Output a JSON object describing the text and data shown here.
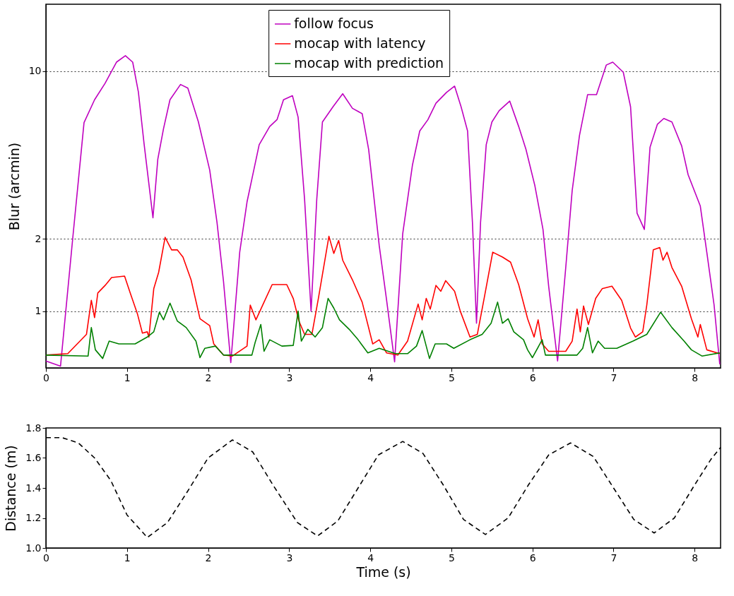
{
  "chart_data": [
    {
      "type": "line",
      "ylabel": "Blur (arcmin)",
      "log": true,
      "grid": "y",
      "legend": "top",
      "xlim": [
        0,
        8.32
      ],
      "xticks": [
        0,
        1,
        2,
        3,
        4,
        5,
        6,
        7,
        8
      ],
      "ylim": [
        0.58,
        19
      ],
      "yticks": [
        1,
        2,
        10
      ],
      "line_style": "solid",
      "series": [
        {
          "name": "follow focus",
          "color": "#bf00bf",
          "x": [
            0,
            0.18,
            0.33,
            0.47,
            0.6,
            0.73,
            0.87,
            0.98,
            1.07,
            1.14,
            1.21,
            1.32,
            1.38,
            1.45,
            1.53,
            1.66,
            1.75,
            1.88,
            2.02,
            2.11,
            2.19,
            2.28,
            2.39,
            2.48,
            2.63,
            2.76,
            2.85,
            2.93,
            3.04,
            3.11,
            3.19,
            3.27,
            3.34,
            3.41,
            3.54,
            3.66,
            3.78,
            3.9,
            3.98,
            4.11,
            4.2,
            4.3,
            4.4,
            4.52,
            4.61,
            4.71,
            4.81,
            4.94,
            5.04,
            5.12,
            5.2,
            5.26,
            5.31,
            5.36,
            5.43,
            5.5,
            5.59,
            5.72,
            5.83,
            5.92,
            6.03,
            6.13,
            6.2,
            6.31,
            6.41,
            6.49,
            6.58,
            6.68,
            6.79,
            6.91,
            6.99,
            7.12,
            7.21,
            7.29,
            7.38,
            7.45,
            7.54,
            7.62,
            7.72,
            7.84,
            7.92,
            8.07,
            8.15,
            8.24,
            8.31
          ],
          "values": [
            0.62,
            0.59,
            2.0,
            6.1,
            7.6,
            8.9,
            10.9,
            11.6,
            10.9,
            8.2,
            5.0,
            2.45,
            4.3,
            5.75,
            7.6,
            8.8,
            8.5,
            6.15,
            3.87,
            2.34,
            1.33,
            0.61,
            1.76,
            2.85,
            4.94,
            5.88,
            6.28,
            7.6,
            7.9,
            6.43,
            2.92,
            1.0,
            2.92,
            6.14,
            7.1,
            8.05,
            7.0,
            6.65,
            4.72,
            1.88,
            1.12,
            0.615,
            2.1,
            4.06,
            5.63,
            6.27,
            7.35,
            8.15,
            8.66,
            7.1,
            5.63,
            2.34,
            0.89,
            2.34,
            4.94,
            6.14,
            6.85,
            7.5,
            5.88,
            4.72,
            3.33,
            2.19,
            1.27,
            0.62,
            1.51,
            3.18,
            5.39,
            7.98,
            7.98,
            10.6,
            10.9,
            9.9,
            7.1,
            2.56,
            2.19,
            4.82,
            6.0,
            6.35,
            6.14,
            4.88,
            3.7,
            2.74,
            1.76,
            1.06,
            0.6
          ]
        },
        {
          "name": "mocap with latency",
          "color": "#ff0000",
          "x": [
            0,
            0.27,
            0.5,
            0.56,
            0.6,
            0.64,
            0.73,
            0.81,
            0.97,
            1.04,
            1.13,
            1.19,
            1.25,
            1.27,
            1.33,
            1.39,
            1.47,
            1.55,
            1.62,
            1.69,
            1.79,
            1.9,
            2.02,
            2.07,
            2.19,
            2.3,
            2.48,
            2.52,
            2.59,
            2.69,
            2.79,
            2.97,
            3.05,
            3.12,
            3.19,
            3.28,
            3.36,
            3.49,
            3.55,
            3.61,
            3.66,
            3.78,
            3.9,
            4.03,
            4.11,
            4.2,
            4.34,
            4.46,
            4.59,
            4.64,
            4.69,
            4.74,
            4.81,
            4.87,
            4.93,
            5.04,
            5.11,
            5.23,
            5.32,
            5.4,
            5.51,
            5.63,
            5.73,
            5.83,
            5.94,
            6.02,
            6.07,
            6.12,
            6.2,
            6.41,
            6.49,
            6.55,
            6.59,
            6.63,
            6.69,
            6.78,
            6.86,
            6.98,
            7.1,
            7.21,
            7.27,
            7.36,
            7.41,
            7.49,
            7.57,
            7.61,
            7.66,
            7.72,
            7.84,
            7.96,
            8.04,
            8.07,
            8.15,
            8.31
          ],
          "values": [
            0.656,
            0.665,
            0.8,
            1.11,
            0.94,
            1.19,
            1.28,
            1.38,
            1.4,
            1.19,
            0.97,
            0.81,
            0.82,
            0.78,
            1.24,
            1.45,
            2.03,
            1.8,
            1.8,
            1.68,
            1.35,
            0.93,
            0.87,
            0.73,
            0.656,
            0.65,
            0.715,
            1.06,
            0.92,
            1.09,
            1.29,
            1.29,
            1.13,
            0.91,
            0.8,
            0.8,
            1.13,
            2.05,
            1.74,
            1.97,
            1.63,
            1.35,
            1.09,
            0.73,
            0.76,
            0.67,
            0.656,
            0.75,
            1.07,
            0.92,
            1.13,
            1.02,
            1.28,
            1.21,
            1.34,
            1.21,
            1.0,
            0.78,
            0.8,
            1.11,
            1.76,
            1.68,
            1.6,
            1.29,
            0.93,
            0.78,
            0.92,
            0.73,
            0.68,
            0.68,
            0.75,
            1.02,
            0.82,
            1.05,
            0.88,
            1.13,
            1.24,
            1.27,
            1.11,
            0.85,
            0.78,
            0.82,
            1.06,
            1.8,
            1.84,
            1.63,
            1.76,
            1.52,
            1.27,
            0.93,
            0.78,
            0.88,
            0.69,
            0.665
          ]
        },
        {
          "name": "mocap with prediction",
          "color": "#008000",
          "x": [
            0,
            0.52,
            0.56,
            0.61,
            0.7,
            0.78,
            0.9,
            1.1,
            1.25,
            1.33,
            1.4,
            1.45,
            1.53,
            1.62,
            1.73,
            1.85,
            1.9,
            1.96,
            2.09,
            2.19,
            2.54,
            2.58,
            2.65,
            2.69,
            2.76,
            2.91,
            3.05,
            3.11,
            3.15,
            3.23,
            3.32,
            3.41,
            3.48,
            3.55,
            3.62,
            3.74,
            3.85,
            3.97,
            4.11,
            4.31,
            4.46,
            4.57,
            4.64,
            4.73,
            4.8,
            4.94,
            5.03,
            5.23,
            5.38,
            5.49,
            5.57,
            5.63,
            5.7,
            5.77,
            5.89,
            5.94,
            6.0,
            6.12,
            6.16,
            6.32,
            6.55,
            6.62,
            6.68,
            6.74,
            6.81,
            6.89,
            7.04,
            7.24,
            7.41,
            7.58,
            7.72,
            7.87,
            7.96,
            8.09,
            8.31
          ],
          "values": [
            0.656,
            0.65,
            0.854,
            0.69,
            0.635,
            0.75,
            0.73,
            0.73,
            0.78,
            0.82,
            0.99,
            0.92,
            1.08,
            0.91,
            0.854,
            0.75,
            0.64,
            0.7,
            0.715,
            0.656,
            0.656,
            0.74,
            0.88,
            0.68,
            0.76,
            0.715,
            0.72,
            1.0,
            0.75,
            0.84,
            0.78,
            0.854,
            1.13,
            1.03,
            0.92,
            0.84,
            0.76,
            0.67,
            0.7,
            0.665,
            0.665,
            0.715,
            0.83,
            0.635,
            0.73,
            0.73,
            0.7,
            0.76,
            0.8,
            0.89,
            1.09,
            0.89,
            0.93,
            0.82,
            0.76,
            0.69,
            0.64,
            0.76,
            0.656,
            0.656,
            0.656,
            0.7,
            0.854,
            0.67,
            0.75,
            0.7,
            0.7,
            0.75,
            0.8,
            0.99,
            0.854,
            0.75,
            0.69,
            0.65,
            0.67
          ]
        }
      ]
    },
    {
      "type": "line",
      "xlabel": "Time (s)",
      "ylabel": "Distance (m)",
      "xlim": [
        0,
        8.32
      ],
      "xticks": [
        0,
        1,
        2,
        3,
        4,
        5,
        6,
        7,
        8
      ],
      "ylim": [
        1.0,
        1.8
      ],
      "yticks": [
        {
          "value": 1,
          "label": "1.0"
        },
        1.2,
        1.4,
        1.6,
        1.8
      ],
      "line_style": "dashed",
      "series": [
        {
          "color": "#000000",
          "x": [
            0,
            0.2,
            0.4,
            0.6,
            0.8,
            1.0,
            1.25,
            1.5,
            1.75,
            2.0,
            2.3,
            2.55,
            2.8,
            3.1,
            3.35,
            3.6,
            3.85,
            4.1,
            4.4,
            4.65,
            4.9,
            5.15,
            5.42,
            5.7,
            5.95,
            6.2,
            6.47,
            6.75,
            7.0,
            7.25,
            7.5,
            7.75,
            8.0,
            8.2,
            8.32
          ],
          "values": [
            1.735,
            1.735,
            1.7,
            1.6,
            1.45,
            1.22,
            1.07,
            1.17,
            1.38,
            1.6,
            1.72,
            1.64,
            1.42,
            1.17,
            1.08,
            1.18,
            1.4,
            1.62,
            1.71,
            1.63,
            1.42,
            1.19,
            1.09,
            1.2,
            1.42,
            1.62,
            1.7,
            1.61,
            1.4,
            1.19,
            1.1,
            1.2,
            1.42,
            1.59,
            1.67
          ]
        }
      ]
    }
  ]
}
